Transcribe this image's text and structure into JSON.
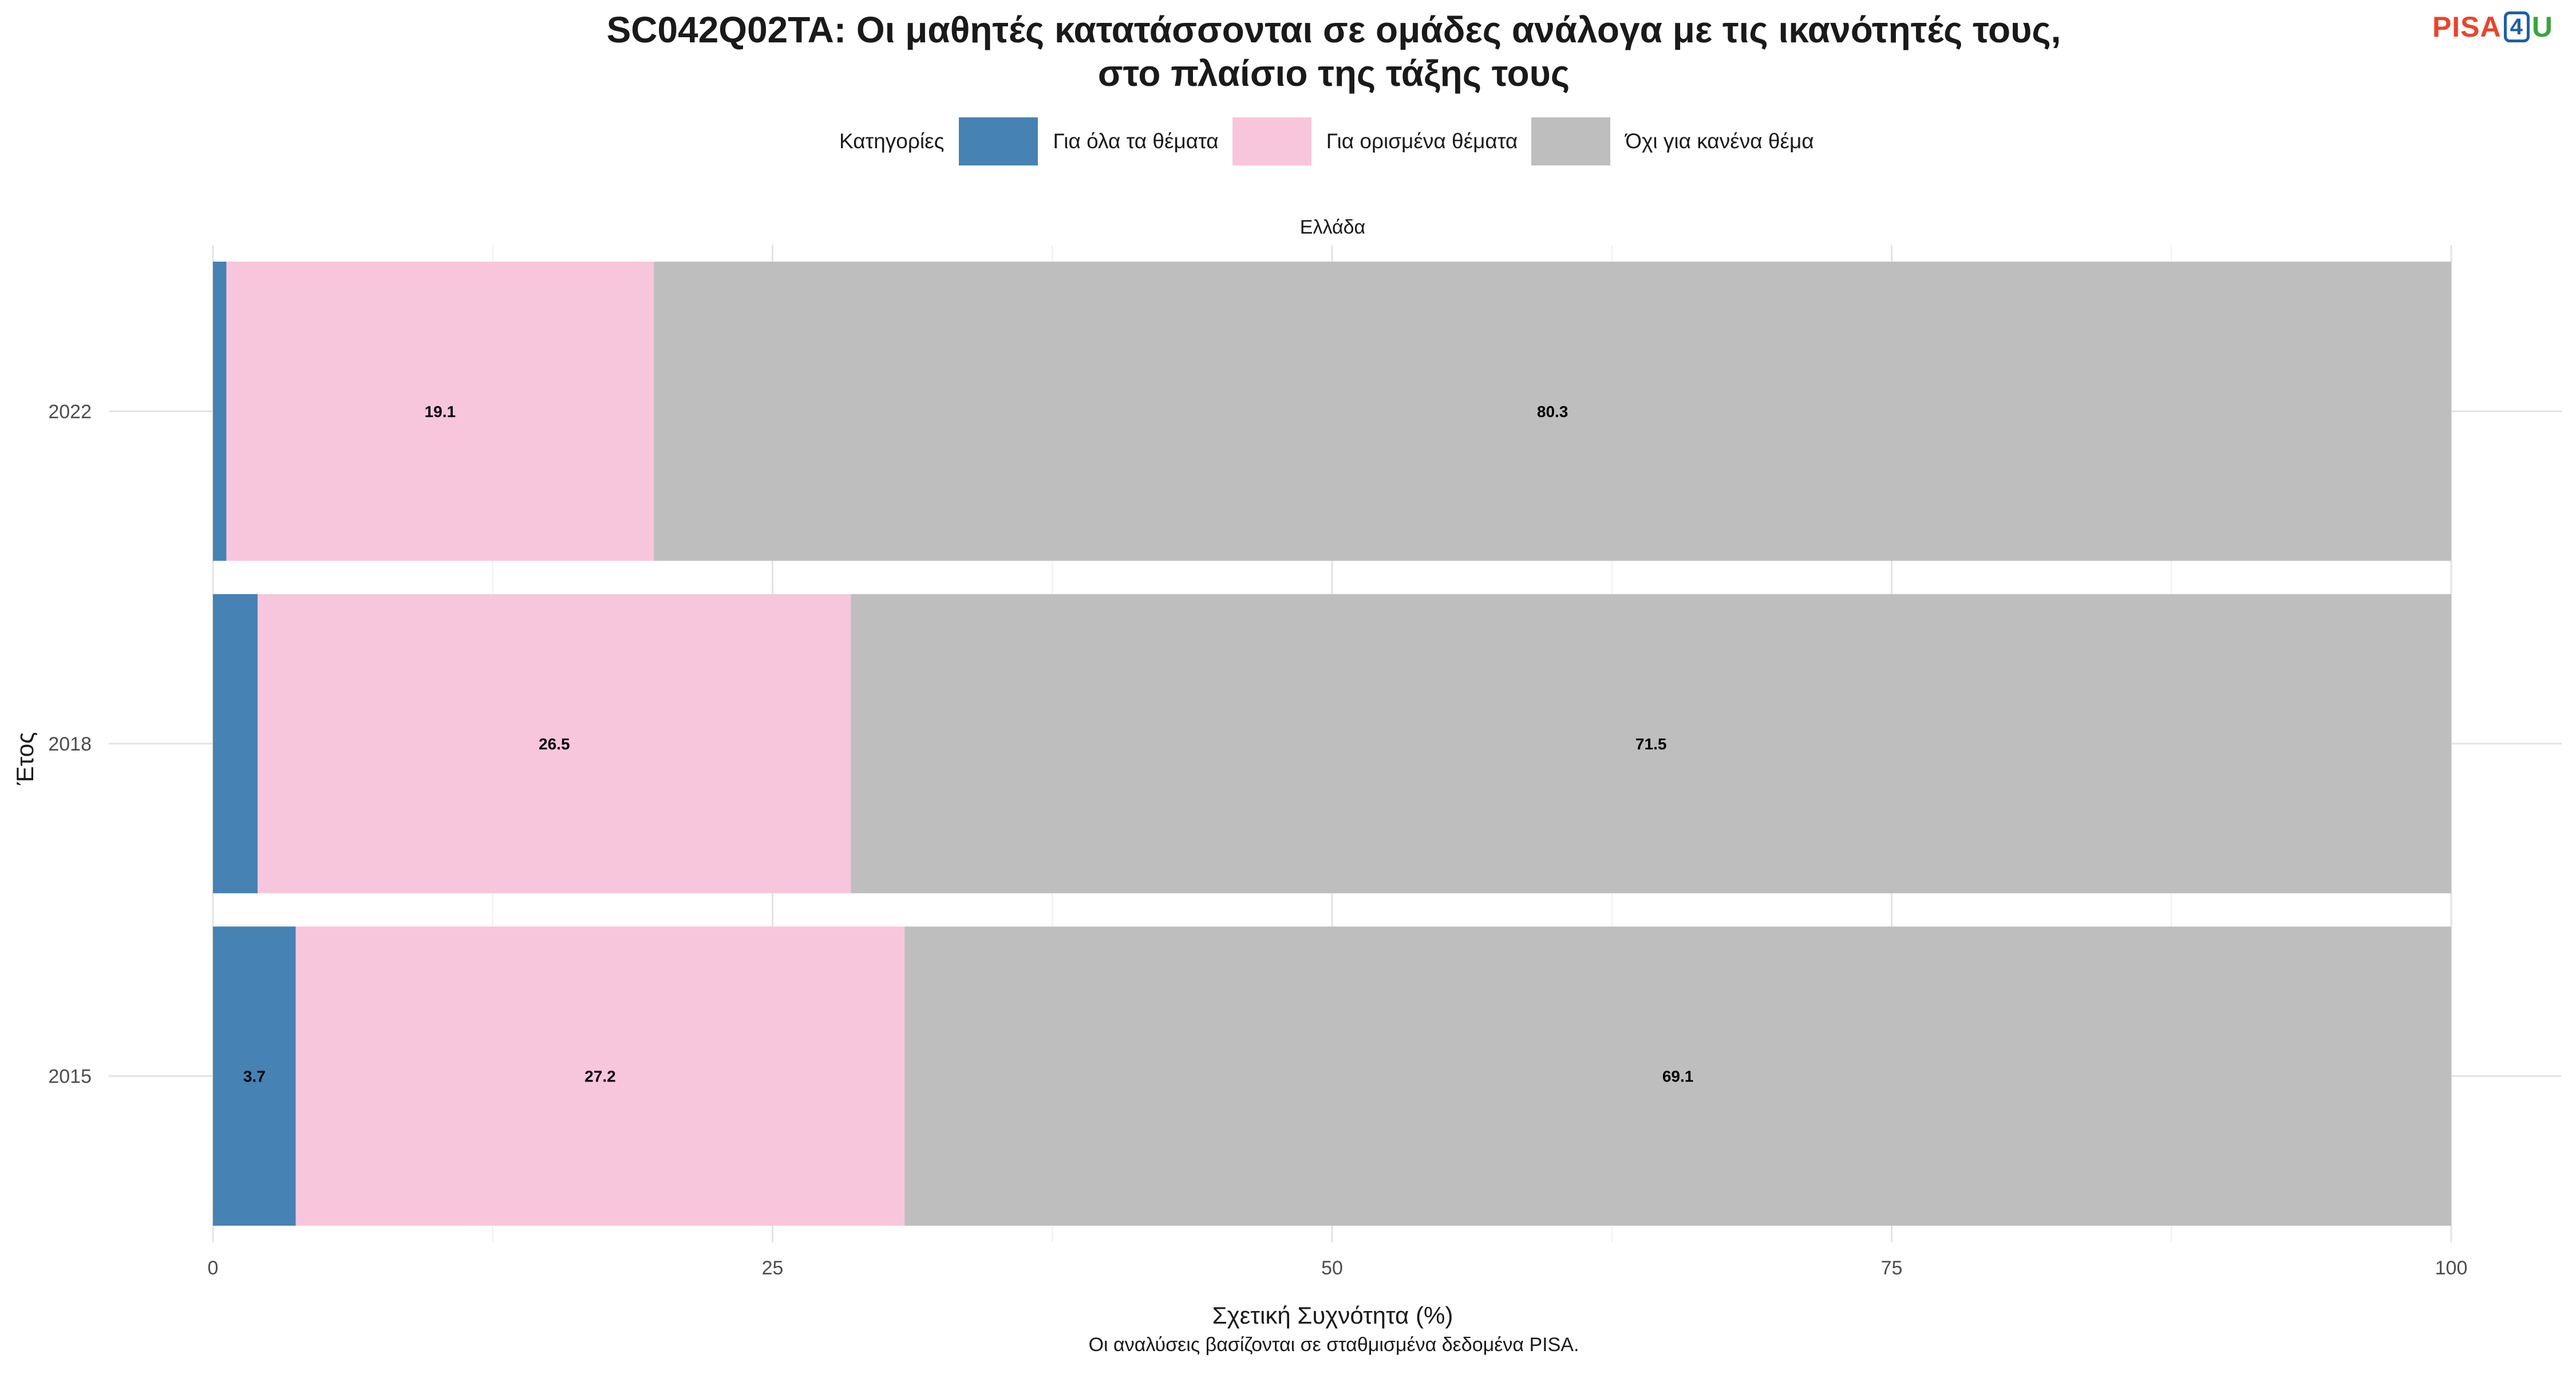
{
  "header": {
    "title_line1": "SC042Q02TA: Οι μαθητές κατατάσσονται σε ομάδες ανάλογα με τις ικανότητές τους,",
    "title_line2": "στο πλαίσιο της τάξης τους",
    "logo": {
      "p": "PISA",
      "n": "4",
      "u": "U"
    }
  },
  "legend": {
    "title": "Κατηγορίες",
    "items": [
      {
        "label": "Για όλα τα θέματα",
        "color": "#4682b4"
      },
      {
        "label": "Για ορισμένα θέματα",
        "color": "#f7c6dc"
      },
      {
        "label": "Όχι για κανένα θέμα",
        "color": "#bebebe"
      }
    ]
  },
  "caption": "Οι αναλύσεις βασίζονται σε σταθμισμένα δεδομένα PISA.",
  "chart_data": {
    "type": "bar",
    "orientation": "horizontal",
    "stacked": true,
    "facet": "Ελλάδα",
    "categories": [
      "2022",
      "2018",
      "2015"
    ],
    "series": [
      {
        "name": "Για όλα τα θέματα",
        "values": [
          0.6,
          2.0,
          3.7
        ],
        "labels": [
          "",
          "",
          "3.7"
        ],
        "color": "#4682b4"
      },
      {
        "name": "Για ορισμένα θέματα",
        "values": [
          19.1,
          26.5,
          27.2
        ],
        "labels": [
          "19.1",
          "26.5",
          "27.2"
        ],
        "color": "#f7c6dc"
      },
      {
        "name": "Όχι για κανένα θέμα",
        "values": [
          80.3,
          71.5,
          69.1
        ],
        "labels": [
          "80.3",
          "71.5",
          "69.1"
        ],
        "color": "#bebebe"
      }
    ],
    "xlabel": "Σχετική Συχνότητα (%)",
    "ylabel": "Έτος",
    "xlim": [
      0,
      100
    ],
    "xticks": [
      0,
      25,
      50,
      75,
      100
    ],
    "grid": true,
    "legend_position": "top"
  }
}
